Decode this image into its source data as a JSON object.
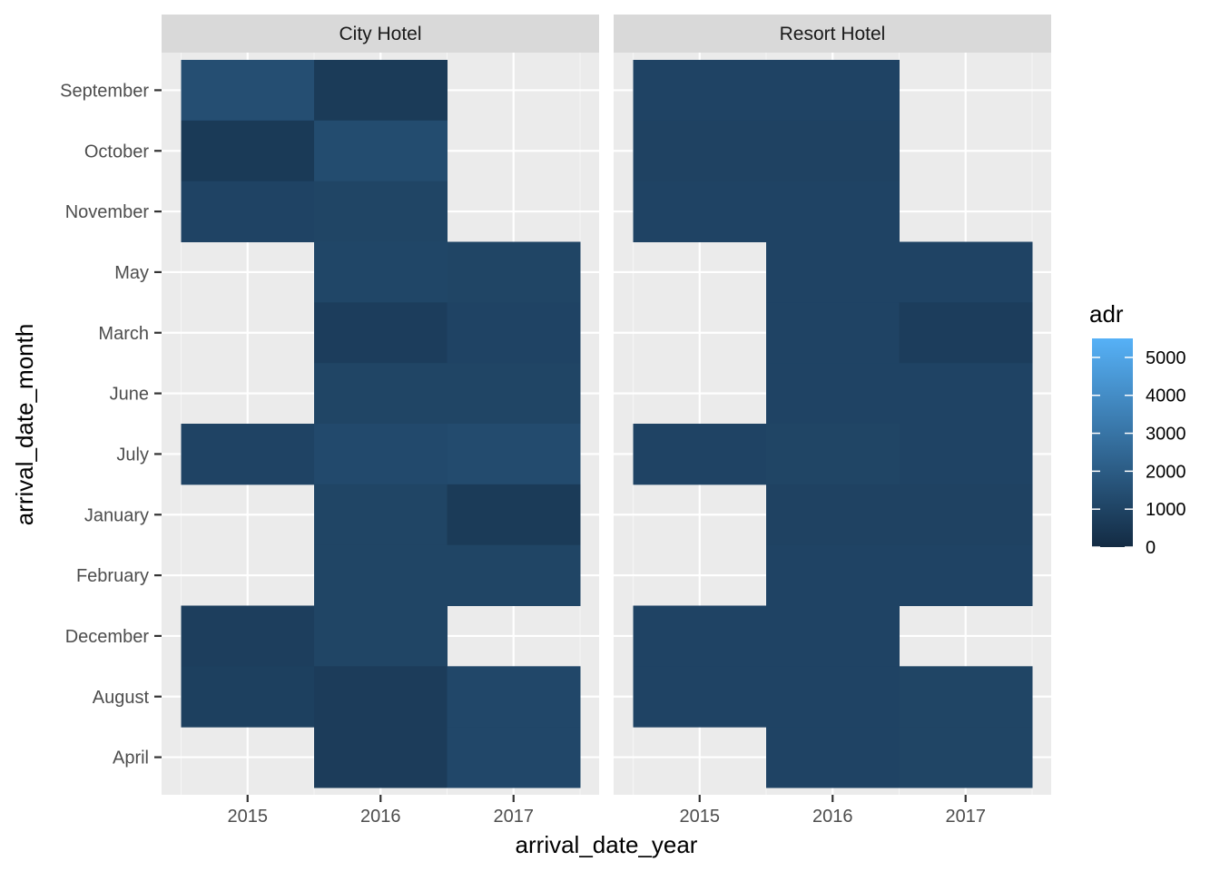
{
  "chart_data": {
    "type": "heatmap",
    "title": "",
    "xlabel": "arrival_date_year",
    "ylabel": "arrival_date_month",
    "x_categories": [
      "2015",
      "2016",
      "2017"
    ],
    "y_categories": [
      "September",
      "October",
      "November",
      "May",
      "March",
      "June",
      "July",
      "January",
      "February",
      "December",
      "August",
      "April"
    ],
    "facets": [
      "City Hotel",
      "Resort Hotel"
    ],
    "legend": {
      "title": "adr",
      "ticks": [
        0,
        1000,
        2000,
        3000,
        4000,
        5000
      ],
      "range": [
        0,
        5500
      ],
      "low_color": "#132b43",
      "high_color": "#56b1f7",
      "placement": "right"
    },
    "cells": [
      {
        "facet": "City Hotel",
        "year": "2015",
        "month": "September",
        "adr": 1450
      },
      {
        "facet": "City Hotel",
        "year": "2015",
        "month": "October",
        "adr": 600
      },
      {
        "facet": "City Hotel",
        "year": "2015",
        "month": "November",
        "adr": 1000
      },
      {
        "facet": "City Hotel",
        "year": "2015",
        "month": "July",
        "adr": 1000
      },
      {
        "facet": "City Hotel",
        "year": "2015",
        "month": "December",
        "adr": 800
      },
      {
        "facet": "City Hotel",
        "year": "2015",
        "month": "August",
        "adr": 850
      },
      {
        "facet": "City Hotel",
        "year": "2016",
        "month": "September",
        "adr": 650
      },
      {
        "facet": "City Hotel",
        "year": "2016",
        "month": "October",
        "adr": 1350
      },
      {
        "facet": "City Hotel",
        "year": "2016",
        "month": "November",
        "adr": 1050
      },
      {
        "facet": "City Hotel",
        "year": "2016",
        "month": "May",
        "adr": 1100
      },
      {
        "facet": "City Hotel",
        "year": "2016",
        "month": "March",
        "adr": 750
      },
      {
        "facet": "City Hotel",
        "year": "2016",
        "month": "June",
        "adr": 1050
      },
      {
        "facet": "City Hotel",
        "year": "2016",
        "month": "July",
        "adr": 1250
      },
      {
        "facet": "City Hotel",
        "year": "2016",
        "month": "January",
        "adr": 1050
      },
      {
        "facet": "City Hotel",
        "year": "2016",
        "month": "February",
        "adr": 1050
      },
      {
        "facet": "City Hotel",
        "year": "2016",
        "month": "December",
        "adr": 1050
      },
      {
        "facet": "City Hotel",
        "year": "2016",
        "month": "August",
        "adr": 700
      },
      {
        "facet": "City Hotel",
        "year": "2016",
        "month": "April",
        "adr": 700
      },
      {
        "facet": "City Hotel",
        "year": "2017",
        "month": "May",
        "adr": 1050
      },
      {
        "facet": "City Hotel",
        "year": "2017",
        "month": "March",
        "adr": 1000
      },
      {
        "facet": "City Hotel",
        "year": "2017",
        "month": "June",
        "adr": 1050
      },
      {
        "facet": "City Hotel",
        "year": "2017",
        "month": "July",
        "adr": 1300
      },
      {
        "facet": "City Hotel",
        "year": "2017",
        "month": "January",
        "adr": 650
      },
      {
        "facet": "City Hotel",
        "year": "2017",
        "month": "February",
        "adr": 1050
      },
      {
        "facet": "City Hotel",
        "year": "2017",
        "month": "August",
        "adr": 1150
      },
      {
        "facet": "City Hotel",
        "year": "2017",
        "month": "April",
        "adr": 1150
      },
      {
        "facet": "Resort Hotel",
        "year": "2015",
        "month": "September",
        "adr": 1000
      },
      {
        "facet": "Resort Hotel",
        "year": "2015",
        "month": "October",
        "adr": 950
      },
      {
        "facet": "Resort Hotel",
        "year": "2015",
        "month": "November",
        "adr": 1000
      },
      {
        "facet": "Resort Hotel",
        "year": "2015",
        "month": "July",
        "adr": 1000
      },
      {
        "facet": "Resort Hotel",
        "year": "2015",
        "month": "December",
        "adr": 1000
      },
      {
        "facet": "Resort Hotel",
        "year": "2015",
        "month": "August",
        "adr": 1000
      },
      {
        "facet": "Resort Hotel",
        "year": "2016",
        "month": "September",
        "adr": 1000
      },
      {
        "facet": "Resort Hotel",
        "year": "2016",
        "month": "October",
        "adr": 950
      },
      {
        "facet": "Resort Hotel",
        "year": "2016",
        "month": "November",
        "adr": 1000
      },
      {
        "facet": "Resort Hotel",
        "year": "2016",
        "month": "May",
        "adr": 1000
      },
      {
        "facet": "Resort Hotel",
        "year": "2016",
        "month": "March",
        "adr": 1000
      },
      {
        "facet": "Resort Hotel",
        "year": "2016",
        "month": "June",
        "adr": 1000
      },
      {
        "facet": "Resort Hotel",
        "year": "2016",
        "month": "July",
        "adr": 1050
      },
      {
        "facet": "Resort Hotel",
        "year": "2016",
        "month": "January",
        "adr": 950
      },
      {
        "facet": "Resort Hotel",
        "year": "2016",
        "month": "February",
        "adr": 1000
      },
      {
        "facet": "Resort Hotel",
        "year": "2016",
        "month": "December",
        "adr": 1000
      },
      {
        "facet": "Resort Hotel",
        "year": "2016",
        "month": "August",
        "adr": 1000
      },
      {
        "facet": "Resort Hotel",
        "year": "2016",
        "month": "April",
        "adr": 1000
      },
      {
        "facet": "Resort Hotel",
        "year": "2017",
        "month": "May",
        "adr": 1000
      },
      {
        "facet": "Resort Hotel",
        "year": "2017",
        "month": "March",
        "adr": 750
      },
      {
        "facet": "Resort Hotel",
        "year": "2017",
        "month": "June",
        "adr": 1000
      },
      {
        "facet": "Resort Hotel",
        "year": "2017",
        "month": "July",
        "adr": 1000
      },
      {
        "facet": "Resort Hotel",
        "year": "2017",
        "month": "January",
        "adr": 950
      },
      {
        "facet": "Resort Hotel",
        "year": "2017",
        "month": "February",
        "adr": 1000
      },
      {
        "facet": "Resort Hotel",
        "year": "2017",
        "month": "August",
        "adr": 1050
      },
      {
        "facet": "Resort Hotel",
        "year": "2017",
        "month": "April",
        "adr": 1050
      }
    ]
  }
}
